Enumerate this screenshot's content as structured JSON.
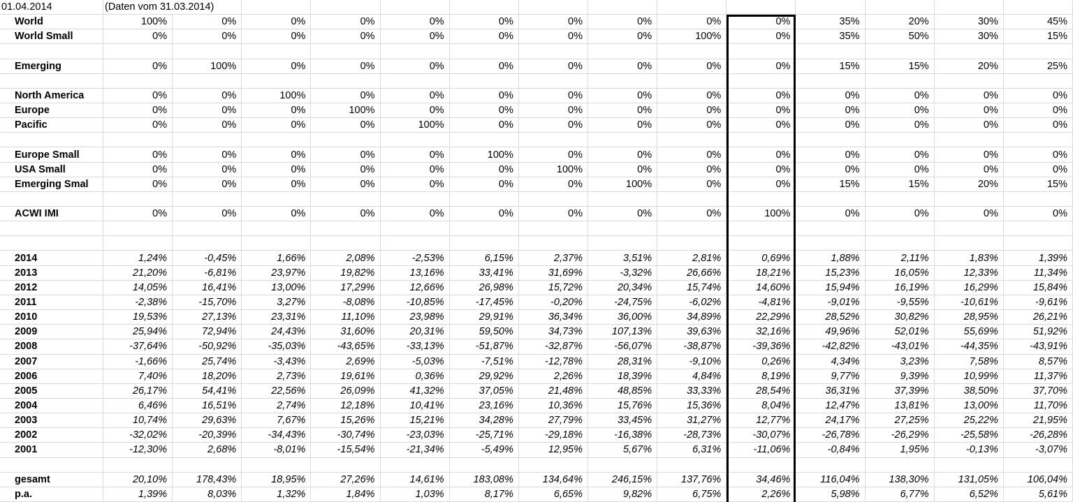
{
  "header": {
    "date": "01.04.2014",
    "note": "(Daten vom 31.03.2014)"
  },
  "colors": {
    "background": "#ffffff",
    "grid": "#d9d9d9",
    "text": "#000000",
    "highlight_border": "#000000"
  },
  "highlight": {
    "description": "thick black border box around the ACWI IMI column (10th data column)",
    "column_index": 10
  },
  "rows": [
    {
      "label": "World",
      "italic": false,
      "values": [
        "100%",
        "0%",
        "0%",
        "0%",
        "0%",
        "0%",
        "0%",
        "0%",
        "0%",
        "0%",
        "35%",
        "20%",
        "30%",
        "45%"
      ]
    },
    {
      "label": "World Small",
      "italic": false,
      "values": [
        "0%",
        "0%",
        "0%",
        "0%",
        "0%",
        "0%",
        "0%",
        "0%",
        "100%",
        "0%",
        "35%",
        "50%",
        "30%",
        "15%"
      ]
    },
    {
      "label": "",
      "values": []
    },
    {
      "label": "Emerging",
      "italic": false,
      "values": [
        "0%",
        "100%",
        "0%",
        "0%",
        "0%",
        "0%",
        "0%",
        "0%",
        "0%",
        "0%",
        "15%",
        "15%",
        "20%",
        "25%"
      ]
    },
    {
      "label": "",
      "values": []
    },
    {
      "label": "North America",
      "italic": false,
      "values": [
        "0%",
        "0%",
        "100%",
        "0%",
        "0%",
        "0%",
        "0%",
        "0%",
        "0%",
        "0%",
        "0%",
        "0%",
        "0%",
        "0%"
      ]
    },
    {
      "label": "Europe",
      "italic": false,
      "values": [
        "0%",
        "0%",
        "0%",
        "100%",
        "0%",
        "0%",
        "0%",
        "0%",
        "0%",
        "0%",
        "0%",
        "0%",
        "0%",
        "0%"
      ]
    },
    {
      "label": "Pacific",
      "italic": false,
      "values": [
        "0%",
        "0%",
        "0%",
        "0%",
        "100%",
        "0%",
        "0%",
        "0%",
        "0%",
        "0%",
        "0%",
        "0%",
        "0%",
        "0%"
      ]
    },
    {
      "label": "",
      "values": []
    },
    {
      "label": "Europe Small",
      "italic": false,
      "values": [
        "0%",
        "0%",
        "0%",
        "0%",
        "0%",
        "100%",
        "0%",
        "0%",
        "0%",
        "0%",
        "0%",
        "0%",
        "0%",
        "0%"
      ]
    },
    {
      "label": "USA Small",
      "italic": false,
      "values": [
        "0%",
        "0%",
        "0%",
        "0%",
        "0%",
        "0%",
        "100%",
        "0%",
        "0%",
        "0%",
        "0%",
        "0%",
        "0%",
        "0%"
      ]
    },
    {
      "label": "Emerging Smal",
      "italic": false,
      "values": [
        "0%",
        "0%",
        "0%",
        "0%",
        "0%",
        "0%",
        "0%",
        "100%",
        "0%",
        "0%",
        "15%",
        "15%",
        "20%",
        "15%"
      ]
    },
    {
      "label": "",
      "values": []
    },
    {
      "label": "ACWI IMI",
      "italic": false,
      "values": [
        "0%",
        "0%",
        "0%",
        "0%",
        "0%",
        "0%",
        "0%",
        "0%",
        "0%",
        "100%",
        "0%",
        "0%",
        "0%",
        "0%"
      ]
    },
    {
      "label": "",
      "values": []
    },
    {
      "label": "",
      "values": []
    },
    {
      "label": "2014",
      "italic": true,
      "values": [
        "1,24%",
        "-0,45%",
        "1,66%",
        "2,08%",
        "-2,53%",
        "6,15%",
        "2,37%",
        "3,51%",
        "2,81%",
        "0,69%",
        "1,88%",
        "2,11%",
        "1,83%",
        "1,39%"
      ]
    },
    {
      "label": "2013",
      "italic": true,
      "values": [
        "21,20%",
        "-6,81%",
        "23,97%",
        "19,82%",
        "13,16%",
        "33,41%",
        "31,69%",
        "-3,32%",
        "26,66%",
        "18,21%",
        "15,23%",
        "16,05%",
        "12,33%",
        "11,34%"
      ]
    },
    {
      "label": "2012",
      "italic": true,
      "values": [
        "14,05%",
        "16,41%",
        "13,00%",
        "17,29%",
        "12,66%",
        "26,98%",
        "15,72%",
        "20,34%",
        "15,74%",
        "14,60%",
        "15,94%",
        "16,19%",
        "16,29%",
        "15,84%"
      ]
    },
    {
      "label": "2011",
      "italic": true,
      "values": [
        "-2,38%",
        "-15,70%",
        "3,27%",
        "-8,08%",
        "-10,85%",
        "-17,45%",
        "-0,20%",
        "-24,75%",
        "-6,02%",
        "-4,81%",
        "-9,01%",
        "-9,55%",
        "-10,61%",
        "-9,61%"
      ]
    },
    {
      "label": "2010",
      "italic": true,
      "values": [
        "19,53%",
        "27,13%",
        "23,31%",
        "11,10%",
        "23,98%",
        "29,91%",
        "36,34%",
        "36,00%",
        "34,89%",
        "22,29%",
        "28,52%",
        "30,82%",
        "28,95%",
        "26,21%"
      ]
    },
    {
      "label": "2009",
      "italic": true,
      "values": [
        "25,94%",
        "72,94%",
        "24,43%",
        "31,60%",
        "20,31%",
        "59,50%",
        "34,73%",
        "107,13%",
        "39,63%",
        "32,16%",
        "49,96%",
        "52,01%",
        "55,69%",
        "51,92%"
      ]
    },
    {
      "label": "2008",
      "italic": true,
      "values": [
        "-37,64%",
        "-50,92%",
        "-35,03%",
        "-43,65%",
        "-33,13%",
        "-51,87%",
        "-32,87%",
        "-56,07%",
        "-38,87%",
        "-39,36%",
        "-42,82%",
        "-43,01%",
        "-44,35%",
        "-43,91%"
      ]
    },
    {
      "label": "2007",
      "italic": true,
      "values": [
        "-1,66%",
        "25,74%",
        "-3,43%",
        "2,69%",
        "-5,03%",
        "-7,51%",
        "-12,78%",
        "28,31%",
        "-9,10%",
        "0,26%",
        "4,34%",
        "3,23%",
        "7,58%",
        "8,57%"
      ]
    },
    {
      "label": "2006",
      "italic": true,
      "values": [
        "7,40%",
        "18,20%",
        "2,73%",
        "19,61%",
        "0,36%",
        "29,92%",
        "2,26%",
        "18,39%",
        "4,84%",
        "8,19%",
        "9,77%",
        "9,39%",
        "10,99%",
        "11,37%"
      ]
    },
    {
      "label": "2005",
      "italic": true,
      "values": [
        "26,17%",
        "54,41%",
        "22,56%",
        "26,09%",
        "41,32%",
        "37,05%",
        "21,48%",
        "48,85%",
        "33,33%",
        "28,54%",
        "36,31%",
        "37,39%",
        "38,50%",
        "37,70%"
      ]
    },
    {
      "label": "2004",
      "italic": true,
      "values": [
        "6,46%",
        "16,51%",
        "2,74%",
        "12,18%",
        "10,41%",
        "23,16%",
        "10,36%",
        "15,76%",
        "15,36%",
        "8,04%",
        "12,47%",
        "13,81%",
        "13,00%",
        "11,70%"
      ]
    },
    {
      "label": "2003",
      "italic": true,
      "values": [
        "10,74%",
        "29,63%",
        "7,67%",
        "15,26%",
        "15,21%",
        "34,28%",
        "27,79%",
        "33,45%",
        "31,27%",
        "12,77%",
        "24,17%",
        "27,25%",
        "25,22%",
        "21,95%"
      ]
    },
    {
      "label": "2002",
      "italic": true,
      "values": [
        "-32,02%",
        "-20,39%",
        "-34,43%",
        "-30,74%",
        "-23,03%",
        "-25,71%",
        "-29,18%",
        "-16,38%",
        "-28,73%",
        "-30,07%",
        "-26,78%",
        "-26,29%",
        "-25,58%",
        "-26,28%"
      ]
    },
    {
      "label": "2001",
      "italic": true,
      "values": [
        "-12,30%",
        "2,68%",
        "-8,01%",
        "-15,54%",
        "-21,34%",
        "-5,49%",
        "12,95%",
        "5,67%",
        "6,31%",
        "-11,06%",
        "-0,84%",
        "1,95%",
        "-0,13%",
        "-3,07%"
      ]
    },
    {
      "label": "",
      "values": []
    },
    {
      "label": "gesamt",
      "italic": true,
      "values": [
        "20,10%",
        "178,43%",
        "18,95%",
        "27,26%",
        "14,61%",
        "183,08%",
        "134,64%",
        "246,15%",
        "137,76%",
        "34,46%",
        "116,04%",
        "138,30%",
        "131,05%",
        "106,04%"
      ]
    },
    {
      "label": "p.a.",
      "italic": true,
      "values": [
        "1,39%",
        "8,03%",
        "1,32%",
        "1,84%",
        "1,03%",
        "8,17%",
        "6,65%",
        "9,82%",
        "6,75%",
        "2,26%",
        "5,98%",
        "6,77%",
        "6,52%",
        "5,61%"
      ]
    }
  ]
}
